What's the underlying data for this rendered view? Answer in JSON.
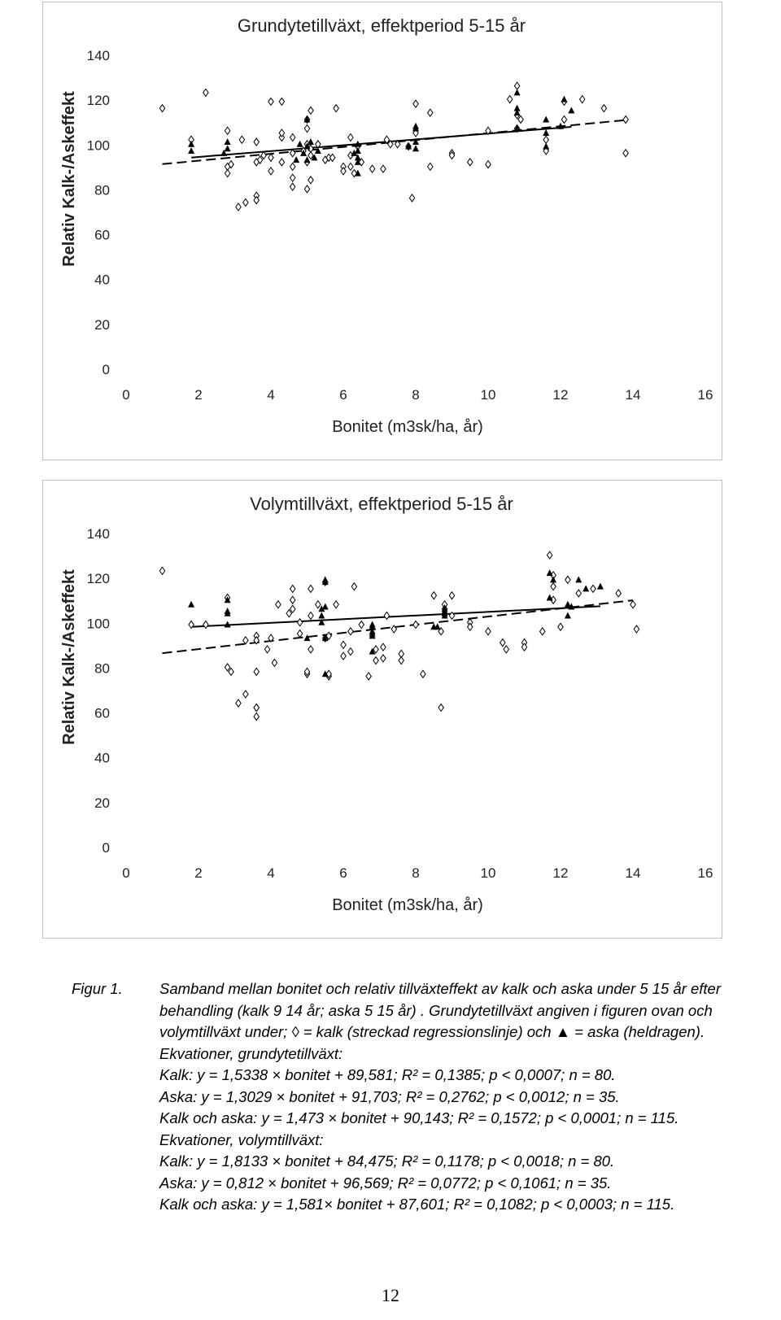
{
  "chart_data": [
    {
      "type": "scatter",
      "title": "Grundytetillväxt, effektperiod 5-15 år",
      "xlabel": "Bonitet (m3sk/ha, år)",
      "ylabel": "Relativ Kalk-/Askeffekt",
      "xlim": [
        0,
        16
      ],
      "ylim": [
        0,
        140
      ],
      "xticks": [
        0,
        2,
        4,
        6,
        8,
        10,
        12,
        14,
        16
      ],
      "yticks": [
        0,
        20,
        40,
        60,
        80,
        100,
        120,
        140
      ],
      "grid": false,
      "legend": "none",
      "series": [
        {
          "marker": "open-diamond",
          "points": [
            [
              1,
              116
            ],
            [
              1.8,
              102
            ],
            [
              2.2,
              123
            ],
            [
              2.8,
              106
            ],
            [
              2.8,
              90
            ],
            [
              2.8,
              87
            ],
            [
              2.9,
              91
            ],
            [
              3.1,
              72
            ],
            [
              3.2,
              102
            ],
            [
              3.3,
              74
            ],
            [
              3.6,
              101
            ],
            [
              3.6,
              92
            ],
            [
              3.6,
              77
            ],
            [
              3.6,
              75
            ],
            [
              3.8,
              95
            ],
            [
              4,
              119
            ],
            [
              4,
              88
            ],
            [
              4,
              94
            ],
            [
              4.3,
              92
            ],
            [
              4.3,
              103
            ],
            [
              4.3,
              105
            ],
            [
              4.3,
              119
            ],
            [
              4.6,
              96
            ],
            [
              4.6,
              103
            ],
            [
              4.6,
              90
            ],
            [
              4.6,
              85
            ],
            [
              4.6,
              81
            ],
            [
              5,
              80
            ],
            [
              5,
              92
            ],
            [
              5,
              100
            ],
            [
              5,
              107
            ],
            [
              5,
              111
            ],
            [
              5.1,
              98
            ],
            [
              5.1,
              84
            ],
            [
              5.1,
              115
            ],
            [
              5.1,
              95
            ],
            [
              5.5,
              93
            ],
            [
              5.6,
              94
            ],
            [
              5.7,
              94
            ],
            [
              5.8,
              116
            ],
            [
              6,
              90
            ],
            [
              6.2,
              103
            ],
            [
              6.2,
              95
            ],
            [
              6.2,
              90
            ],
            [
              6.3,
              87
            ],
            [
              6.5,
              92
            ],
            [
              6.8,
              89
            ],
            [
              7.1,
              89
            ],
            [
              7.2,
              102
            ],
            [
              7.5,
              100
            ],
            [
              7.8,
              99
            ],
            [
              7.9,
              76
            ],
            [
              8,
              118
            ],
            [
              8,
              105
            ],
            [
              8.4,
              114
            ],
            [
              8.4,
              90
            ],
            [
              9,
              96
            ],
            [
              9.5,
              92
            ],
            [
              10,
              106
            ],
            [
              10,
              91
            ],
            [
              10.6,
              120
            ],
            [
              10.8,
              126
            ],
            [
              10.8,
              113
            ],
            [
              10.9,
              111
            ],
            [
              11.6,
              102
            ],
            [
              11.6,
              97
            ],
            [
              12.1,
              119
            ],
            [
              12.1,
              111
            ],
            [
              12.6,
              120
            ],
            [
              13.2,
              116
            ],
            [
              13.8,
              111
            ],
            [
              13.8,
              96
            ],
            [
              6.4,
              99
            ],
            [
              7.3,
              100
            ],
            [
              5.3,
              100
            ],
            [
              3.7,
              93
            ],
            [
              4.9,
              97
            ],
            [
              9,
              95
            ],
            [
              10.8,
              107
            ],
            [
              6,
              88
            ]
          ]
        },
        {
          "marker": "filled-triangle",
          "points": [
            [
              1.8,
              100
            ],
            [
              1.8,
              97
            ],
            [
              2.8,
              101
            ],
            [
              2.8,
              98
            ],
            [
              4.7,
              93
            ],
            [
              5,
              111
            ],
            [
              5,
              93
            ],
            [
              5.1,
              101
            ],
            [
              5.3,
              97
            ],
            [
              6.4,
              97
            ],
            [
              6.4,
              92
            ],
            [
              6.4,
              87
            ],
            [
              6.4,
              94
            ],
            [
              7.8,
              99
            ],
            [
              8,
              108
            ],
            [
              8,
              101
            ],
            [
              8,
              98
            ],
            [
              10.8,
              114
            ],
            [
              10.8,
              107
            ],
            [
              10.8,
              123
            ],
            [
              11.6,
              111
            ],
            [
              11.6,
              105
            ],
            [
              11.6,
              99
            ],
            [
              12.1,
              120
            ],
            [
              12.3,
              115
            ],
            [
              4.8,
              100
            ],
            [
              4.9,
              96
            ],
            [
              6.4,
              100
            ],
            [
              8,
              107
            ],
            [
              5,
              99
            ],
            [
              6.3,
              96
            ],
            [
              10.8,
              116
            ],
            [
              12,
              108
            ],
            [
              2.7,
              96
            ],
            [
              5.2,
              94
            ]
          ]
        }
      ],
      "regression": [
        {
          "name": "kalk",
          "style": "dashed",
          "equation": "y = 1,5338x + 89,581",
          "slope": 1.5338,
          "intercept": 89.581,
          "x_range": [
            1,
            13.8
          ]
        },
        {
          "name": "aska",
          "style": "solid",
          "equation": "y = 1,3029x + 91,703",
          "slope": 1.3029,
          "intercept": 91.703,
          "x_range": [
            1.8,
            12.3
          ]
        }
      ]
    },
    {
      "type": "scatter",
      "title": "Volymtillväxt, effektperiod 5-15 år",
      "xlabel": "Bonitet (m3sk/ha, år)",
      "ylabel": "Relativ Kalk-/Askeffekt",
      "xlim": [
        0,
        16
      ],
      "ylim": [
        0,
        140
      ],
      "xticks": [
        0,
        2,
        4,
        6,
        8,
        10,
        12,
        14,
        16
      ],
      "yticks": [
        0,
        20,
        40,
        60,
        80,
        100,
        120,
        140
      ],
      "grid": false,
      "legend": "none",
      "series": [
        {
          "marker": "open-diamond",
          "points": [
            [
              1,
              123
            ],
            [
              1.8,
              99
            ],
            [
              2.2,
              99
            ],
            [
              2.8,
              111
            ],
            [
              2.8,
              80
            ],
            [
              2.9,
              78
            ],
            [
              3.1,
              64
            ],
            [
              3.3,
              68
            ],
            [
              3.3,
              92
            ],
            [
              3.6,
              78
            ],
            [
              3.6,
              94
            ],
            [
              3.6,
              92
            ],
            [
              3.6,
              62
            ],
            [
              3.6,
              58
            ],
            [
              3.9,
              88
            ],
            [
              4,
              93
            ],
            [
              4.1,
              82
            ],
            [
              4.2,
              108
            ],
            [
              4.5,
              104
            ],
            [
              4.6,
              115
            ],
            [
              4.6,
              110
            ],
            [
              4.6,
              106
            ],
            [
              4.8,
              95
            ],
            [
              4.8,
              100
            ],
            [
              5,
              77
            ],
            [
              5.1,
              115
            ],
            [
              5.1,
              88
            ],
            [
              5.1,
              103
            ],
            [
              5.3,
              108
            ],
            [
              5.5,
              118
            ],
            [
              5.5,
              93
            ],
            [
              5.6,
              76
            ],
            [
              5.6,
              77
            ],
            [
              5.8,
              108
            ],
            [
              6,
              90
            ],
            [
              6,
              85
            ],
            [
              6.2,
              87
            ],
            [
              6.3,
              116
            ],
            [
              6.5,
              99
            ],
            [
              6.7,
              76
            ],
            [
              6.9,
              83
            ],
            [
              7.1,
              84
            ],
            [
              7.1,
              89
            ],
            [
              7.2,
              103
            ],
            [
              7.4,
              97
            ],
            [
              7.6,
              86
            ],
            [
              8,
              99
            ],
            [
              8.2,
              77
            ],
            [
              8.5,
              112
            ],
            [
              8.7,
              62
            ],
            [
              8.7,
              96
            ],
            [
              8.8,
              108
            ],
            [
              9,
              112
            ],
            [
              9,
              103
            ],
            [
              9.5,
              100
            ],
            [
              10,
              96
            ],
            [
              10.4,
              91
            ],
            [
              10.5,
              88
            ],
            [
              11,
              91
            ],
            [
              11,
              89
            ],
            [
              11.5,
              96
            ],
            [
              11.7,
              130
            ],
            [
              11.8,
              121
            ],
            [
              11.8,
              116
            ],
            [
              11.8,
              110
            ],
            [
              12,
              98
            ],
            [
              12.2,
              119
            ],
            [
              12.5,
              113
            ],
            [
              12.9,
              115
            ],
            [
              13.6,
              113
            ],
            [
              14,
              108
            ],
            [
              14.1,
              97
            ],
            [
              6.2,
              96
            ],
            [
              5.6,
              94
            ],
            [
              8.8,
              106
            ],
            [
              3.6,
              62
            ],
            [
              5,
              78
            ],
            [
              6.9,
              88
            ],
            [
              7.6,
              83
            ],
            [
              9.5,
              98
            ]
          ]
        },
        {
          "marker": "filled-triangle",
          "points": [
            [
              1.8,
              108
            ],
            [
              2.8,
              110
            ],
            [
              2.8,
              104
            ],
            [
              2.8,
              99
            ],
            [
              5,
              93
            ],
            [
              5.4,
              106
            ],
            [
              5.4,
              100
            ],
            [
              5.5,
              119
            ],
            [
              5.5,
              107
            ],
            [
              5.5,
              77
            ],
            [
              6.8,
              99
            ],
            [
              6.8,
              95
            ],
            [
              6.8,
              96
            ],
            [
              6.8,
              87
            ],
            [
              8.5,
              98
            ],
            [
              8.8,
              104
            ],
            [
              8.8,
              105
            ],
            [
              8.8,
              106
            ],
            [
              11.7,
              122
            ],
            [
              11.7,
              111
            ],
            [
              12.2,
              108
            ],
            [
              12.2,
              103
            ],
            [
              12.5,
              119
            ],
            [
              12.7,
              115
            ],
            [
              13.1,
              116
            ],
            [
              5.5,
              118
            ],
            [
              6.8,
              98
            ],
            [
              8.8,
              103
            ],
            [
              5.4,
              103
            ],
            [
              11.8,
              119
            ],
            [
              12.3,
              107
            ],
            [
              5.5,
              93
            ],
            [
              6.8,
              94
            ],
            [
              2.8,
              105
            ],
            [
              8.6,
              98
            ]
          ]
        }
      ],
      "regression": [
        {
          "name": "kalk",
          "style": "dashed",
          "equation": "y = 1,8133x + 84,475",
          "slope": 1.8133,
          "intercept": 84.475,
          "x_range": [
            1,
            14
          ]
        },
        {
          "name": "aska",
          "style": "solid",
          "equation": "y = 0,812x + 96,569",
          "slope": 0.812,
          "intercept": 96.569,
          "x_range": [
            1.8,
            13.1
          ]
        }
      ]
    }
  ],
  "caption": {
    "label": "Figur 1.",
    "line1": "Samband mellan bonitet och relativ tillväxteffekt av kalk och aska under 5 15 år efter",
    "line2": "behandling (kalk 9 14 år; aska 5 15 år) . Grundytetillväxt angiven i figuren ovan och",
    "line3": "volymtillväxt under; ◊ = kalk (streckad regressionslinje) och ▲ = aska (heldragen).",
    "line4": "Ekvationer, grundytetillväxt:",
    "line5": "Kalk: y = 1,5338 × bonitet + 89,581; R² = 0,1385; p < 0,0007; n = 80.",
    "line6": "Aska: y = 1,3029 × bonitet + 91,703; R² = 0,2762; p < 0,0012; n = 35.",
    "line7": "Kalk och aska: y = 1,473 × bonitet + 90,143; R² = 0,1572; p < 0,0001; n = 115.",
    "line8": "Ekvationer, volymtillväxt:",
    "line9": "Kalk: y = 1,8133 × bonitet + 84,475; R² = 0,1178; p < 0,0018; n = 80.",
    "line10": "Aska: y = 0,812 × bonitet + 96,569; R² = 0,0772; p < 0,1061; n = 35.",
    "line11": "Kalk och aska: y = 1,581× bonitet + 87,601; R² = 0,1082; p < 0,0003; n = 115."
  },
  "page_number": "12"
}
